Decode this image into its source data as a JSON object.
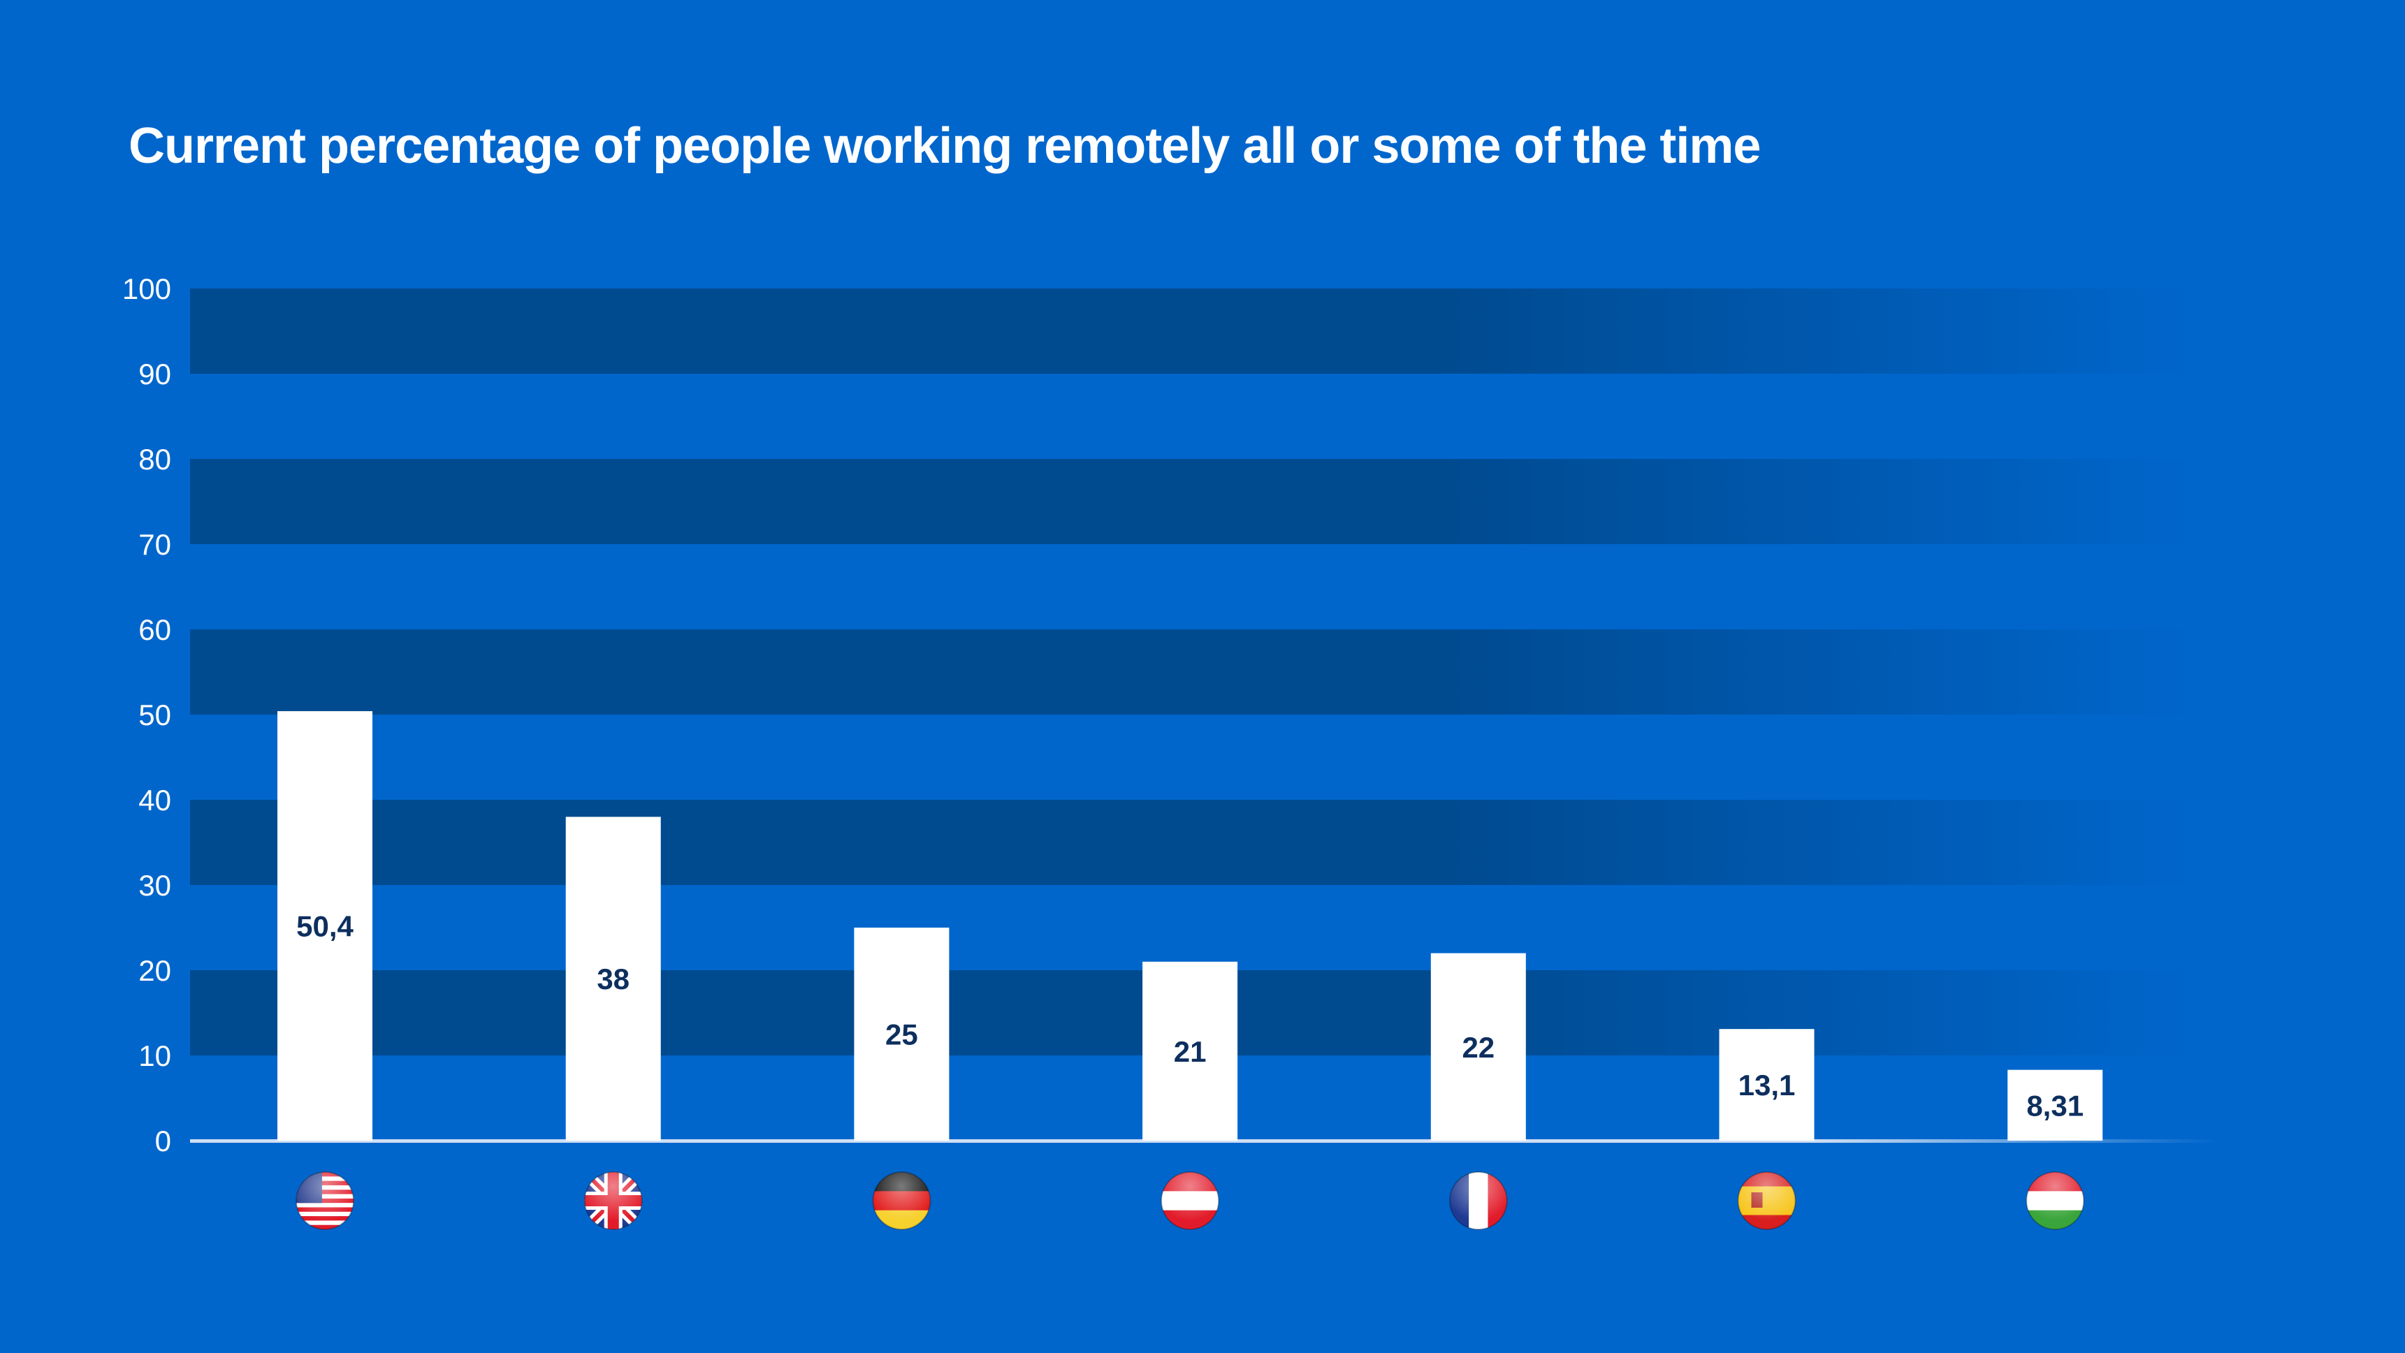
{
  "chart_data": {
    "type": "bar",
    "title": "Current percentage of people working remotely all or some of the time",
    "xlabel": "",
    "ylabel": "",
    "ylim": [
      0,
      100
    ],
    "yticks": [
      "0",
      "10",
      "20",
      "30",
      "40",
      "50",
      "60",
      "70",
      "80",
      "90",
      "100"
    ],
    "categories": [
      "United States",
      "United Kingdom",
      "Germany",
      "Austria",
      "France",
      "Spain",
      "Hungary"
    ],
    "category_icons": [
      "us-flag-icon",
      "uk-flag-icon",
      "germany-flag-icon",
      "austria-flag-icon",
      "france-flag-icon",
      "spain-flag-icon",
      "hungary-flag-icon"
    ],
    "values": [
      50.4,
      38,
      25,
      21,
      22,
      13.1,
      8.31
    ],
    "value_labels": [
      "50,4",
      "38",
      "25",
      "21",
      "22",
      "13,1",
      "8,31"
    ],
    "grid": "alternating horizontal bands",
    "legend": "none"
  },
  "colors": {
    "background": "#0066cc",
    "band": "#004a8f",
    "bar": "#ffffff",
    "value_label": "#0d2f5e",
    "text": "#ffffff"
  }
}
